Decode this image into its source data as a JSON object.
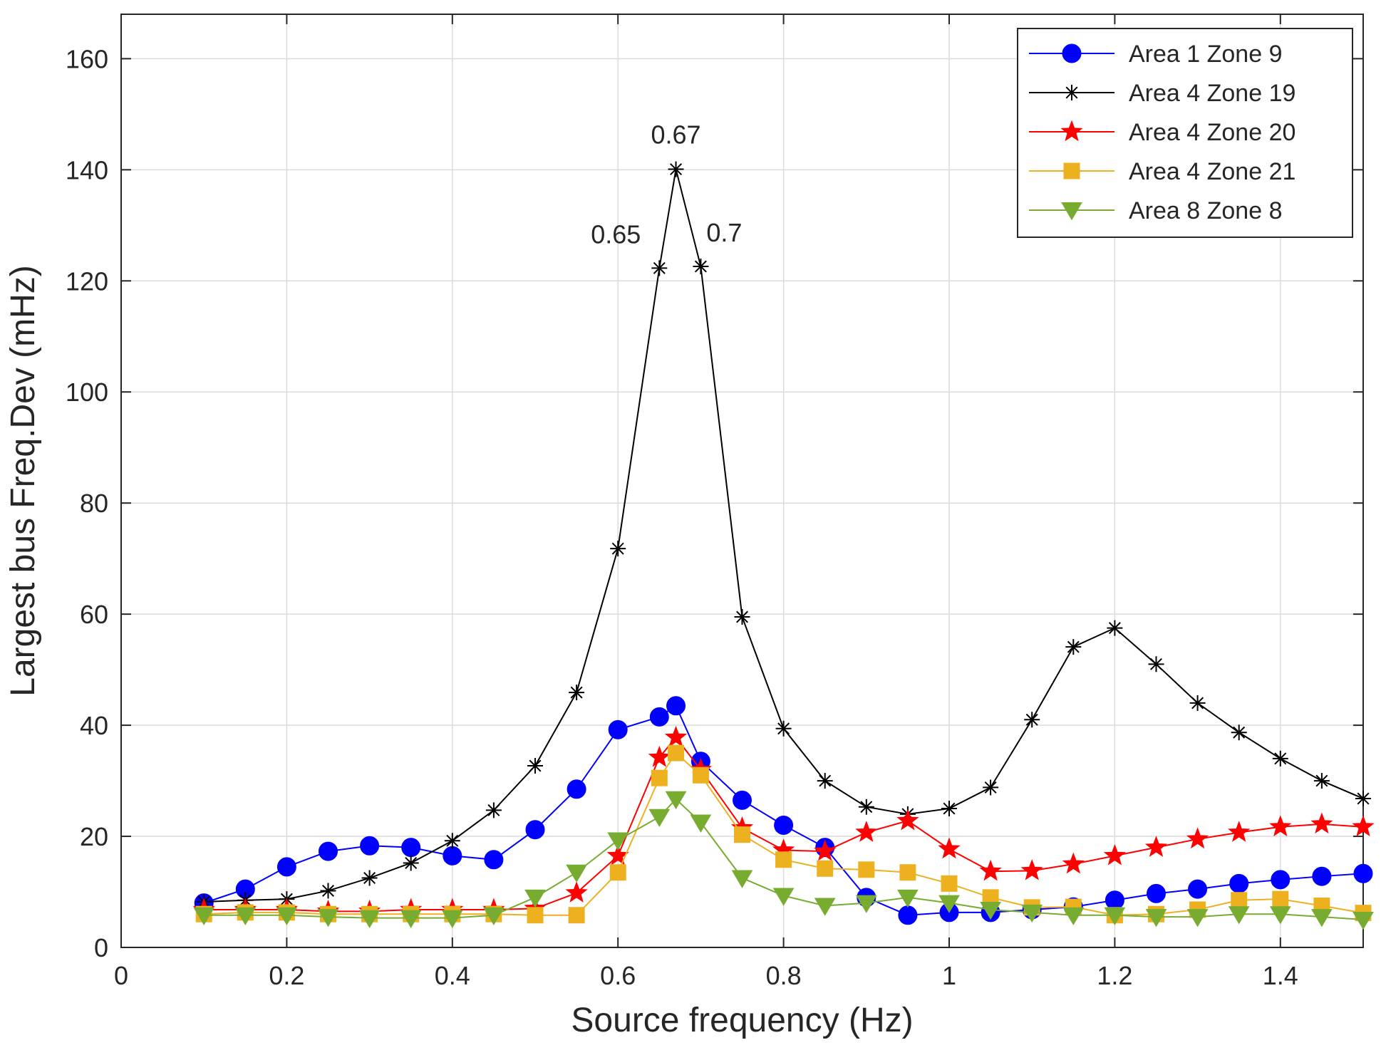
{
  "chart_data": {
    "type": "line",
    "title": "",
    "xlabel": "Source frequency (Hz)",
    "ylabel": "Largest bus Freq.Dev (mHz)",
    "xlim": [
      0,
      1.5
    ],
    "ylim": [
      0,
      168
    ],
    "grid": true,
    "legend_position": "top-right",
    "x_ticks": [
      0,
      0.2,
      0.4,
      0.6,
      0.8,
      1,
      1.2,
      1.4
    ],
    "x_tick_labels": [
      "0",
      "0.2",
      "0.4",
      "0.6",
      "0.8",
      "1",
      "1.2",
      "1.4"
    ],
    "y_ticks": [
      0,
      20,
      40,
      60,
      80,
      100,
      120,
      140,
      160
    ],
    "y_tick_labels": [
      "0",
      "20",
      "40",
      "60",
      "80",
      "100",
      "120",
      "140",
      "160"
    ],
    "x": [
      0.1,
      0.15,
      0.2,
      0.25,
      0.3,
      0.35,
      0.4,
      0.45,
      0.5,
      0.55,
      0.6,
      0.65,
      0.67,
      0.7,
      0.75,
      0.8,
      0.85,
      0.9,
      0.95,
      1.0,
      1.05,
      1.1,
      1.15,
      1.2,
      1.25,
      1.3,
      1.35,
      1.4,
      1.45,
      1.5
    ],
    "series": [
      {
        "name": "Area 1 Zone 9",
        "color": "#0000ff",
        "marker": "circle",
        "values": [
          8,
          10.5,
          14.5,
          17.3,
          18.3,
          18,
          16.5,
          15.8,
          21.2,
          28.5,
          39.2,
          41.5,
          43.5,
          33.5,
          26.5,
          22,
          18,
          9,
          5.8,
          6.3,
          6.3,
          6.8,
          7.3,
          8.5,
          9.7,
          10.5,
          11.5,
          12.2,
          12.8,
          13.3
        ]
      },
      {
        "name": "Area 4 Zone 19",
        "color": "#000000",
        "marker": "asterisk",
        "values": [
          8.2,
          8.5,
          8.7,
          10.2,
          12.5,
          15.2,
          19.2,
          24.7,
          32.7,
          45.9,
          71.8,
          122.3,
          140.1,
          122.6,
          59.5,
          39.4,
          30,
          25.3,
          24,
          25,
          28.8,
          41,
          54.1,
          57.5,
          51,
          44,
          38.7,
          34,
          30,
          26.8
        ]
      },
      {
        "name": "Area 4 Zone 20",
        "color": "#ff0000",
        "marker": "pentagram",
        "values": [
          6.8,
          6.8,
          6.8,
          6.5,
          6.5,
          6.8,
          6.8,
          6.8,
          7,
          9.8,
          16.5,
          34.2,
          37.8,
          32,
          21.5,
          17.5,
          17.3,
          20.7,
          22.8,
          17.7,
          13.7,
          13.8,
          15,
          16.5,
          18,
          19.5,
          20.7,
          21.7,
          22.2,
          21.7
        ]
      },
      {
        "name": "Area 4 Zone 21",
        "color": "#edb120",
        "marker": "square",
        "values": [
          6,
          6.3,
          6.3,
          6,
          6,
          6,
          6,
          6,
          5.8,
          5.8,
          13.5,
          30.5,
          35,
          31,
          20.3,
          15.8,
          14.2,
          14,
          13.5,
          11.5,
          9,
          7.2,
          7.3,
          5.8,
          6,
          6.8,
          8.5,
          8.7,
          7.5,
          6.2
        ]
      },
      {
        "name": "Area 8 Zone 8",
        "color": "#77ac30",
        "marker": "triangle-down",
        "values": [
          5.8,
          5.8,
          5.8,
          5.5,
          5.3,
          5.3,
          5.3,
          5.8,
          9,
          13.5,
          19.3,
          23.5,
          26.7,
          22.5,
          12.5,
          9.3,
          7.5,
          8,
          9,
          8,
          6.8,
          6.3,
          5.8,
          5.8,
          5.5,
          5.5,
          6,
          6,
          5.5,
          5
        ]
      }
    ],
    "annotations": [
      {
        "text": "0.67",
        "x": 0.67,
        "y": 140.1
      },
      {
        "text": "0.65",
        "x": 0.65,
        "y": 122.3
      },
      {
        "text": "0.7",
        "x": 0.7,
        "y": 122.6
      }
    ]
  }
}
